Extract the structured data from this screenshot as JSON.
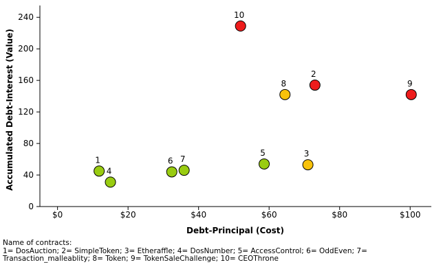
{
  "chart_data": {
    "type": "scatter",
    "xlabel": "Debt-Principal (Cost)",
    "ylabel": "Accumulated Debt-Interest (Value)",
    "xlim": [
      -5,
      106
    ],
    "ylim": [
      0,
      255
    ],
    "x_ticks": [
      0,
      20,
      40,
      60,
      80,
      100
    ],
    "x_tick_labels": [
      "$0",
      "$20",
      "$40",
      "$60",
      "$80",
      "$100"
    ],
    "y_ticks": [
      0,
      40,
      80,
      120,
      160,
      200,
      240
    ],
    "y_tick_labels": [
      "0",
      "40",
      "80",
      "120",
      "160",
      "200",
      "240"
    ],
    "grid": false,
    "colors": {
      "red": "#ee1c1c",
      "yellow": "#f8c20a",
      "green": "#99cc11"
    },
    "points": [
      {
        "label": "1",
        "x": 11.8,
        "y": 45,
        "color": "green"
      },
      {
        "label": "2",
        "x": 73,
        "y": 154,
        "color": "red"
      },
      {
        "label": "3",
        "x": 71,
        "y": 53,
        "color": "yellow"
      },
      {
        "label": "4",
        "x": 15,
        "y": 31,
        "color": "green"
      },
      {
        "label": "5",
        "x": 58.6,
        "y": 54,
        "color": "green"
      },
      {
        "label": "6",
        "x": 32.4,
        "y": 44,
        "color": "green"
      },
      {
        "label": "7",
        "x": 35.9,
        "y": 46,
        "color": "green"
      },
      {
        "label": "8",
        "x": 64.5,
        "y": 142,
        "color": "yellow"
      },
      {
        "label": "9",
        "x": 100.3,
        "y": 142,
        "color": "red"
      },
      {
        "label": "10",
        "x": 51.9,
        "y": 229,
        "color": "red"
      }
    ]
  },
  "caption": {
    "line1": "Name of contracts:",
    "line2": "1= DosAuction; 2= SimpleToken; 3= Etheraffle; 4= DosNumber; 5= AccessControl; 6= OddEven; 7=",
    "line3": "Transaction_malleablity; 8= Token; 9= TokenSaleChallenge; 10= CEOThrone"
  }
}
